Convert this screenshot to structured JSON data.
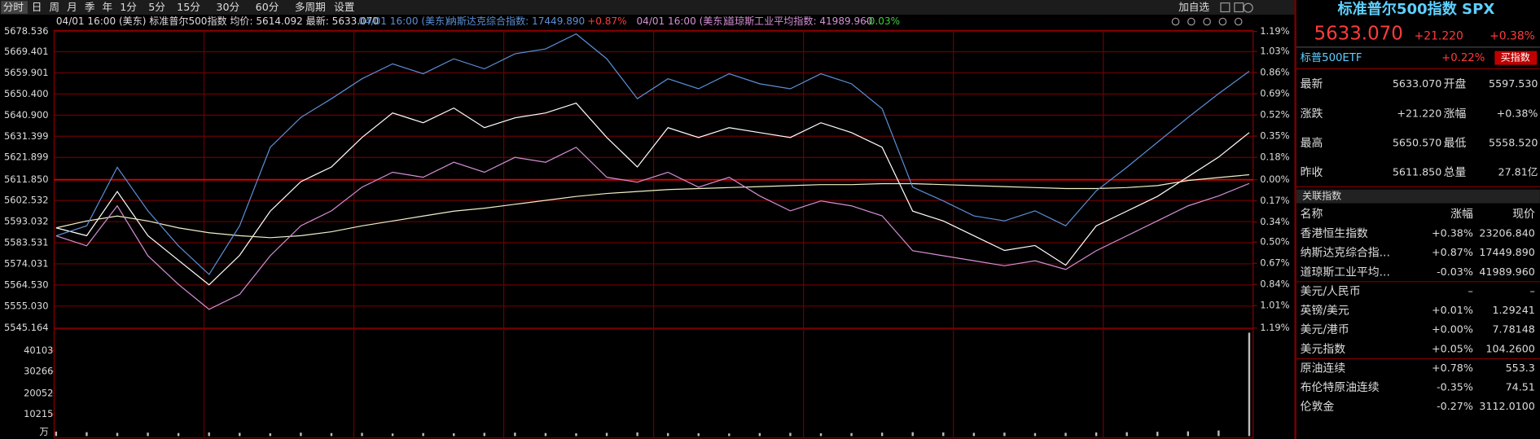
{
  "toolbar": {
    "periods": [
      "分时",
      "日",
      "周",
      "月",
      "季",
      "年",
      "1分",
      "5分",
      "15分",
      "30分",
      "60分",
      "多周期",
      "设置"
    ],
    "add_watchlist": "加自选"
  },
  "info_bar": {
    "main": "04/01 16:00 (美东) 标准普尔500指数 均价: 5614.092 最新: 5633.070",
    "compare": [
      {
        "time": "04/01 16:00 (美东)",
        "name": "纳斯达克综合指数: 17449.890",
        "change": "+0.87%"
      },
      {
        "time": "04/01 16:00 (美东)",
        "name": "道琼斯工业平均指数: 41989.960",
        "change": "-0.03%"
      }
    ]
  },
  "chart_data": [
    {
      "type": "line",
      "ylim": [
        5545.164,
        5678.536
      ],
      "yticks": [
        5678.536,
        5669.401,
        5659.901,
        {
          "value": 5650.4,
          "label": "5650.400"
        },
        {
          "value": 5640.9,
          "label": "5640.900"
        },
        5631.399,
        5621.899,
        {
          "value": 5611.85,
          "label": "5611.850"
        },
        5602.532,
        5593.032,
        5583.531,
        5574.031,
        {
          "value": 5564.53,
          "label": "5564.530"
        },
        {
          "value": 5555.03,
          "label": "5555.030"
        },
        5545.164
      ],
      "y2lim": [
        -1.19,
        1.19
      ],
      "y2ticks": [
        {
          "value": 1.19,
          "label": "1.19%"
        },
        {
          "value": 1.03,
          "label": "1.03%"
        },
        {
          "value": 0.86,
          "label": "0.86%"
        },
        {
          "value": 0.69,
          "label": "0.69%"
        },
        {
          "value": 0.52,
          "label": "0.52%"
        },
        {
          "value": 0.35,
          "label": "0.35%"
        },
        {
          "value": 0.18,
          "label": "0.18%"
        },
        {
          "value": 0,
          "label": "0.00%"
        },
        {
          "value": -0.17,
          "label": "0.17%"
        },
        {
          "value": -0.34,
          "label": "0.34%"
        },
        {
          "value": -0.5,
          "label": "0.50%"
        },
        {
          "value": -0.67,
          "label": "0.67%"
        },
        {
          "value": -0.84,
          "label": "0.84%"
        },
        {
          "value": -1.01,
          "label": "1.01%"
        },
        {
          "value": -1.19,
          "label": "1.19%"
        }
      ],
      "series": [
        {
          "color": "#ffffff",
          "values": [
            5590.21,
            5586.67,
            5606.55,
            5586.67,
            5575.63,
            5564.59,
            5577.84,
            5597.72,
            5610.97,
            5617.59,
            5630.84,
            5641.89,
            5637.47,
            5644.09,
            5635.26,
            5639.68,
            5641.89,
            5646.3,
            5630.84,
            5617.59,
            5635.26,
            5630.84,
            5635.26,
            5633.05,
            5630.84,
            5637.47,
            5633.05,
            5626.43,
            5597.72,
            5593.3,
            5586.67,
            5580.05,
            5582.26,
            5573.42,
            5591.09,
            5597.72,
            5604.34,
            5613.18,
            5622.01,
            5633.07
          ]
        },
        {
          "color": "#f0f0c8",
          "values": [
            5590.21,
            5593.3,
            5595.51,
            5593.3,
            5590.21,
            5588,
            5586.67,
            5585.79,
            5586.67,
            5588.44,
            5591.09,
            5593.3,
            5595.51,
            5597.72,
            5599.04,
            5600.81,
            5602.57,
            5604.34,
            5605.67,
            5606.55,
            5607.43,
            5607.87,
            5608.32,
            5608.76,
            5609.2,
            5609.64,
            5609.64,
            5610.08,
            5610.08,
            5609.64,
            5609.2,
            5608.76,
            5608.32,
            5607.87,
            5607.87,
            5608.32,
            5609.2,
            5611.5,
            5612.8,
            5614.09
          ]
        },
        {
          "color": "#5b8fd6",
          "axis": "y2",
          "values": [
            -0.45,
            -0.37,
            0.1,
            -0.25,
            -0.53,
            -0.76,
            -0.37,
            0.26,
            0.5,
            0.65,
            0.81,
            0.93,
            0.85,
            0.97,
            0.89,
            1.01,
            1.05,
            1.17,
            0.97,
            0.65,
            0.81,
            0.73,
            0.85,
            0.77,
            0.73,
            0.85,
            0.77,
            0.57,
            -0.06,
            -0.17,
            -0.29,
            -0.33,
            -0.25,
            -0.37,
            -0.09,
            0.1,
            0.3,
            0.5,
            0.69,
            0.87
          ]
        },
        {
          "color": "#d68fd6",
          "axis": "y2",
          "values": [
            -0.45,
            -0.53,
            -0.21,
            -0.61,
            -0.84,
            -1.04,
            -0.92,
            -0.61,
            -0.37,
            -0.25,
            -0.06,
            0.06,
            0.02,
            0.14,
            0.06,
            0.18,
            0.14,
            0.26,
            0.02,
            -0.02,
            0.06,
            -0.06,
            0.02,
            -0.13,
            -0.25,
            -0.17,
            -0.21,
            -0.29,
            -0.57,
            -0.61,
            -0.65,
            -0.69,
            -0.65,
            -0.72,
            -0.57,
            -0.45,
            -0.33,
            -0.21,
            -0.13,
            -0.03
          ]
        }
      ]
    },
    {
      "type": "bar",
      "unit": "万",
      "color": "#bbbbbb",
      "ylim": [
        0,
        49759
      ],
      "yticks": [
        40103,
        30266,
        20052,
        10215
      ],
      "values": [
        2100,
        1800,
        1500,
        1600,
        1400,
        1700,
        1500,
        1300,
        1600,
        1400,
        1500,
        1200,
        1400,
        1300,
        1500,
        1600,
        1400,
        1300,
        1500,
        1700,
        1400,
        1300,
        1200,
        1400,
        1500,
        1300,
        1400,
        1600,
        1800,
        1700,
        1500,
        1600,
        1400,
        1500,
        1700,
        1800,
        2000,
        2200,
        2600,
        48500
      ]
    }
  ],
  "quote_panel": {
    "title": "标准普尔500指数 SPX",
    "price": "5633.070",
    "change": "+21.220",
    "change_pct": "+0.38%",
    "etf": {
      "name": "标普500ETF",
      "change": "+0.22%",
      "button": "买指数"
    },
    "stats": [
      [
        "最新",
        "5633.070",
        "开盘",
        "5597.530"
      ],
      [
        "涨跌",
        "+21.220",
        "涨幅",
        "+0.38%"
      ],
      [
        "最高",
        "5650.570",
        "最低",
        "5558.520"
      ],
      [
        "昨收",
        "5611.850",
        "总量",
        "27.81亿"
      ]
    ],
    "related": {
      "title": "关联指数",
      "header": [
        "名称",
        "涨幅",
        "现价"
      ],
      "rows": [
        [
          "香港恒生指数",
          "+0.38%",
          "23206.840"
        ],
        [
          "纳斯达克综合指...",
          "+0.87%",
          "17449.890"
        ],
        [
          "道琼斯工业平均...",
          "-0.03%",
          "41989.960"
        ],
        [
          "美元/人民币",
          "–",
          "–"
        ],
        [
          "英镑/美元",
          "+0.01%",
          "1.29241"
        ],
        [
          "美元/港币",
          "+0.00%",
          "7.78148"
        ],
        [
          "美元指数",
          "+0.05%",
          "104.2600"
        ],
        [
          "原油连续",
          "+0.78%",
          "553.3"
        ],
        [
          "布伦特原油连续",
          "-0.35%",
          "74.51"
        ],
        [
          "伦敦金",
          "-0.27%",
          "3112.0100"
        ]
      ]
    }
  }
}
